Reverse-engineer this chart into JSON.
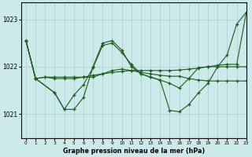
{
  "title": "Graphe pression niveau de la mer (hPa)",
  "bg_color": "#cceaea",
  "grid_color": "#aacccc",
  "line_color": "#1a5c1a",
  "xlim": [
    -0.5,
    23
  ],
  "ylim": [
    1020.5,
    1023.35
  ],
  "yticks": [
    1021,
    1022,
    1023
  ],
  "xticks": [
    0,
    1,
    2,
    3,
    4,
    5,
    6,
    7,
    8,
    9,
    10,
    11,
    12,
    13,
    14,
    15,
    16,
    17,
    18,
    19,
    20,
    21,
    22,
    23
  ],
  "series": [
    {
      "x": [
        0,
        1,
        2,
        3,
        4,
        5,
        6,
        7,
        8,
        9,
        10,
        11,
        12,
        13,
        14,
        15,
        16,
        17,
        18,
        19,
        20,
        21,
        22,
        23
      ],
      "y": [
        1022.55,
        1021.75,
        1021.78,
        1021.75,
        1021.75,
        1021.75,
        1021.78,
        1021.82,
        1021.85,
        1021.88,
        1021.9,
        1021.92,
        1021.92,
        1021.92,
        1021.92,
        1021.92,
        1021.93,
        1021.95,
        1021.97,
        1022.0,
        1022.0,
        1022.0,
        1022.0,
        1022.0
      ]
    },
    {
      "x": [
        0,
        1,
        2,
        3,
        4,
        5,
        6,
        7,
        8,
        9,
        10,
        11,
        12,
        13,
        14,
        15,
        16,
        17,
        18,
        19,
        20,
        21,
        22,
        23
      ],
      "y": [
        1022.55,
        1021.75,
        1021.78,
        1021.78,
        1021.78,
        1021.78,
        1021.78,
        1021.78,
        1021.85,
        1021.92,
        1021.95,
        1021.92,
        1021.88,
        1021.85,
        1021.82,
        1021.8,
        1021.8,
        1021.75,
        1021.72,
        1021.7,
        1021.7,
        1021.7,
        1021.7,
        1021.7
      ]
    },
    {
      "x": [
        0,
        1,
        3,
        4,
        5,
        6,
        7,
        8,
        9,
        10,
        11,
        12,
        13,
        14,
        15,
        16,
        17,
        18,
        19,
        20,
        21,
        22,
        23
      ],
      "y": [
        1022.55,
        1021.75,
        1021.45,
        1021.1,
        1021.1,
        1021.35,
        1022.0,
        1022.5,
        1022.55,
        1022.35,
        1022.0,
        1021.85,
        1021.78,
        1021.72,
        1021.08,
        1021.05,
        1021.2,
        1021.45,
        1021.65,
        1022.0,
        1022.25,
        1022.9,
        1023.15
      ]
    },
    {
      "x": [
        0,
        1,
        3,
        4,
        5,
        6,
        7,
        8,
        9,
        10,
        11,
        12,
        13,
        14,
        15,
        16,
        17,
        18,
        19,
        20,
        21,
        22,
        23
      ],
      "y": [
        1022.55,
        1021.75,
        1021.45,
        1021.1,
        1021.4,
        1021.62,
        1021.98,
        1022.45,
        1022.5,
        1022.3,
        1022.05,
        1021.85,
        1021.78,
        1021.72,
        1021.65,
        1021.55,
        1021.75,
        1021.98,
        1022.0,
        1022.03,
        1022.05,
        1022.05,
        1023.15
      ]
    }
  ]
}
